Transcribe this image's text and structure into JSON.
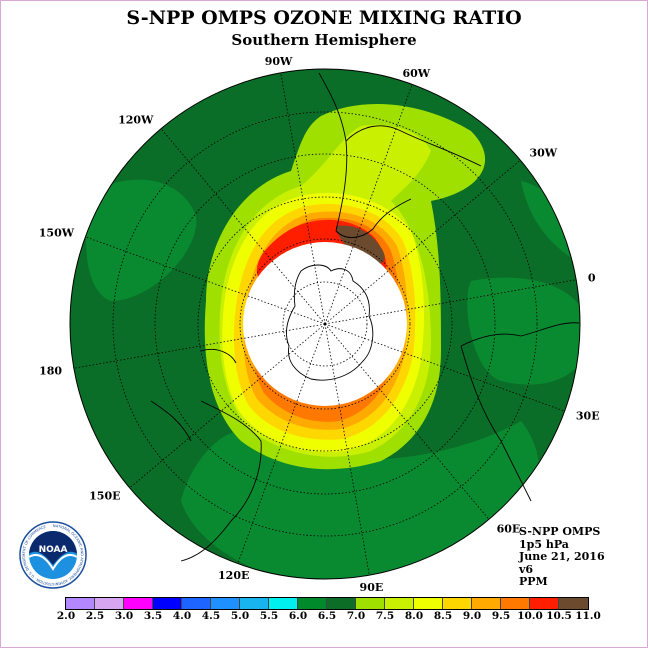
{
  "title": "S-NPP OMPS OZONE MIXING RATIO",
  "subtitle": "Southern Hemisphere",
  "longitude_labels": [
    {
      "text": "90W",
      "lon": -90
    },
    {
      "text": "60W",
      "lon": -60
    },
    {
      "text": "30W",
      "lon": -30
    },
    {
      "text": "0",
      "lon": 0
    },
    {
      "text": "30E",
      "lon": 30
    },
    {
      "text": "60E",
      "lon": 60
    },
    {
      "text": "90E",
      "lon": 90
    },
    {
      "text": "120E",
      "lon": 120
    },
    {
      "text": "150E",
      "lon": 150
    },
    {
      "text": "180",
      "lon": 180
    },
    {
      "text": "150W",
      "lon": -150
    },
    {
      "text": "120W",
      "lon": -120
    }
  ],
  "info": {
    "instrument": "S-NPP OMPS",
    "pressure": "1p5 hPa",
    "date": "June 21, 2016",
    "version": "v6",
    "units": "PPM"
  },
  "colorbar": {
    "ticks": [
      "2.0",
      "2.5",
      "3.0",
      "3.5",
      "4.0",
      "4.5",
      "5.0",
      "5.5",
      "6.0",
      "6.5",
      "7.0",
      "7.5",
      "8.0",
      "8.5",
      "9.0",
      "9.5",
      "10.0",
      "10.5",
      "11.0"
    ],
    "colors": [
      "#b388ff",
      "#d6a6f0",
      "#ff00ff",
      "#0000ff",
      "#1e64ff",
      "#1e90ff",
      "#18b4f0",
      "#00f0f0",
      "#008a2c",
      "#0c6e26",
      "#a0e000",
      "#c8f000",
      "#f0ff00",
      "#ffd700",
      "#ffaa00",
      "#ff7800",
      "#ff1e00",
      "#6b4a2e"
    ]
  },
  "logo": {
    "text": "NOAA",
    "ring_text": "NATIONAL OCEANIC AND ATMOSPHERIC ADMINISTRATION · U.S. DEPARTMENT OF COMMERCE"
  },
  "map": {
    "background_color": "#0a7a2a",
    "polar_night_color": "#ffffff"
  }
}
